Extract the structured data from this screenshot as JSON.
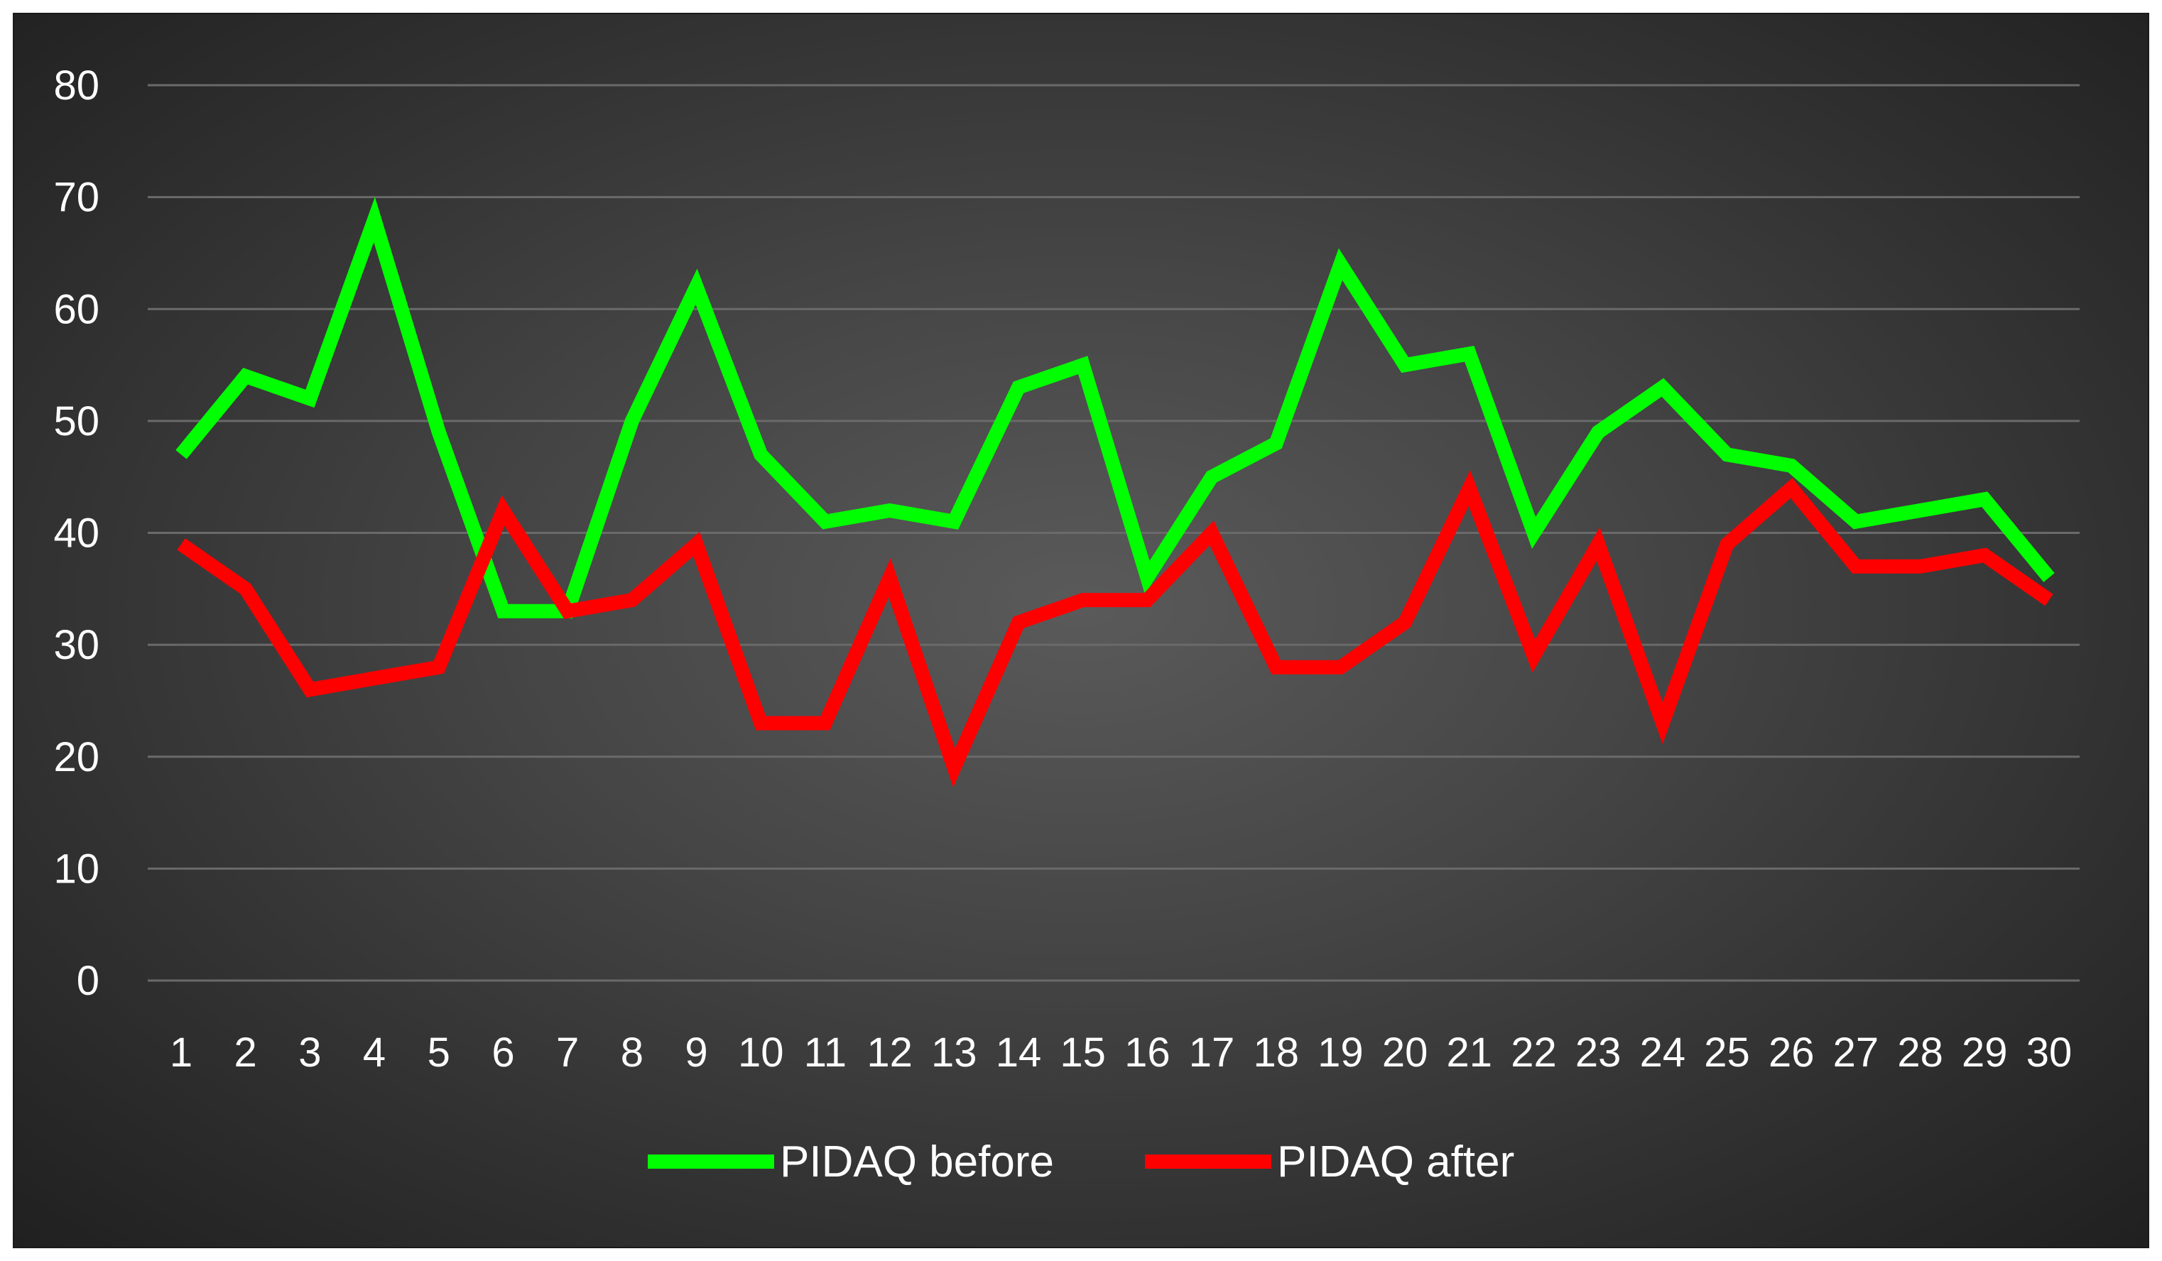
{
  "chart_data": {
    "type": "line",
    "title": "",
    "xlabel": "",
    "ylabel": "",
    "x": [
      1,
      2,
      3,
      4,
      5,
      6,
      7,
      8,
      9,
      10,
      11,
      12,
      13,
      14,
      15,
      16,
      17,
      18,
      19,
      20,
      21,
      22,
      23,
      24,
      25,
      26,
      27,
      28,
      29,
      30
    ],
    "ylim": [
      0,
      80
    ],
    "yticks": [
      0,
      10,
      20,
      30,
      40,
      50,
      60,
      70,
      80
    ],
    "grid": true,
    "legend_position": "bottom",
    "series": [
      {
        "name": "PIDAQ before",
        "color": "#00ff00",
        "values": [
          47,
          54,
          52,
          68,
          49,
          33,
          33,
          50,
          62,
          47,
          41,
          42,
          41,
          53,
          55,
          36,
          45,
          48,
          64,
          55,
          56,
          40,
          49,
          53,
          47,
          46,
          41,
          42,
          43,
          36
        ]
      },
      {
        "name": "PIDAQ after",
        "color": "#ff0000",
        "values": [
          39,
          35,
          26,
          27,
          28,
          42,
          33,
          34,
          39,
          23,
          23,
          36,
          19,
          32,
          34,
          34,
          40,
          28,
          28,
          32,
          44,
          29,
          39,
          23,
          39,
          44,
          37,
          37,
          38,
          34
        ]
      }
    ]
  }
}
